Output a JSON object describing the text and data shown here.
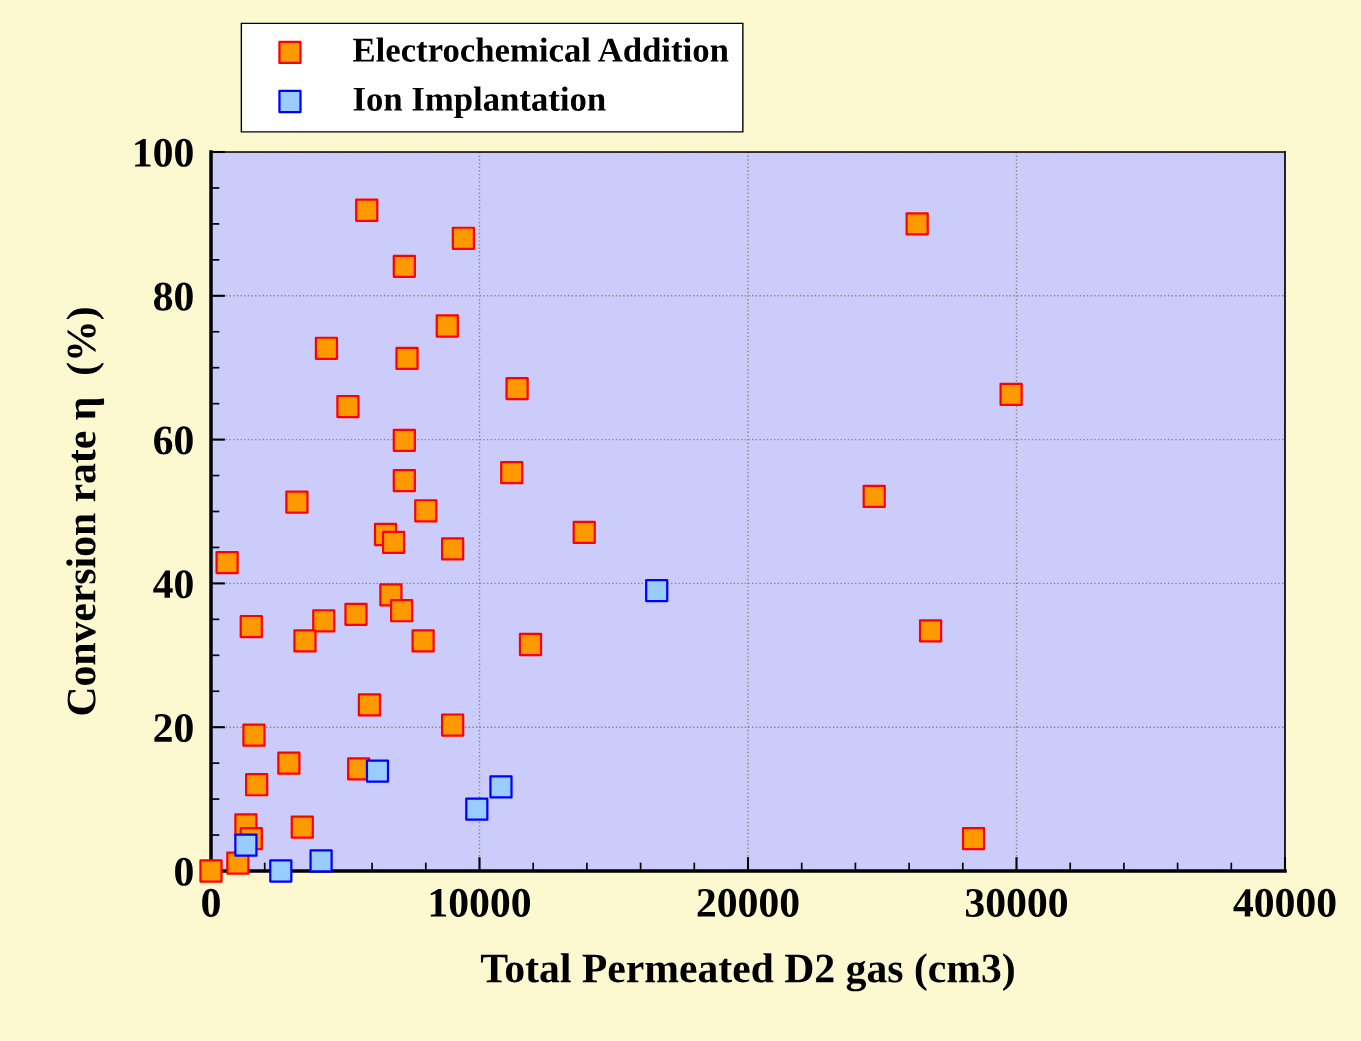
{
  "chart_data": {
    "type": "scatter",
    "xlabel": "Total Permeated D2 gas (cm3)",
    "ylabel": "Conversion rate η  (%)",
    "xlim": [
      0,
      40000
    ],
    "ylim": [
      0,
      100
    ],
    "xticks": [
      0,
      10000,
      20000,
      30000,
      40000
    ],
    "yticks": [
      0,
      20,
      40,
      60,
      80,
      100
    ],
    "grid": true,
    "legend": "top left",
    "marker": "square",
    "series": [
      {
        "name": "Electrochemical Addition",
        "color": "#ff9900",
        "x": [
          5800,
          9400,
          7200,
          8800,
          4300,
          7300,
          11400,
          5100,
          7200,
          11200,
          7200,
          3200,
          8000,
          6500,
          6800,
          13900,
          9000,
          600,
          6700,
          7100,
          5400,
          4200,
          1500,
          3500,
          7900,
          11900,
          5900,
          9000,
          1600,
          2900,
          5500,
          1700,
          1300,
          3400,
          1500,
          1000,
          0,
          26300,
          29800,
          24700,
          26800,
          28400
        ],
        "values": [
          91.9,
          88,
          84.1,
          75.8,
          72.7,
          71.3,
          67.1,
          64.6,
          59.9,
          55.4,
          54.3,
          51.3,
          50.1,
          46.8,
          45.7,
          47.1,
          44.8,
          42.9,
          38.4,
          36.2,
          35.7,
          34.8,
          34,
          32,
          32,
          31.5,
          23.1,
          20.3,
          18.9,
          15,
          14.2,
          12,
          6.4,
          6.1,
          4.5,
          1.1,
          0,
          90,
          66.3,
          52.1,
          33.4,
          4.5
        ]
      },
      {
        "name": "Ion Implantation",
        "color": "#99ccff",
        "x": [
          16600,
          6200,
          10800,
          9900,
          1300,
          2600,
          4100
        ],
        "values": [
          39,
          13.9,
          11.7,
          8.6,
          3.6,
          0,
          1.4
        ]
      }
    ]
  }
}
